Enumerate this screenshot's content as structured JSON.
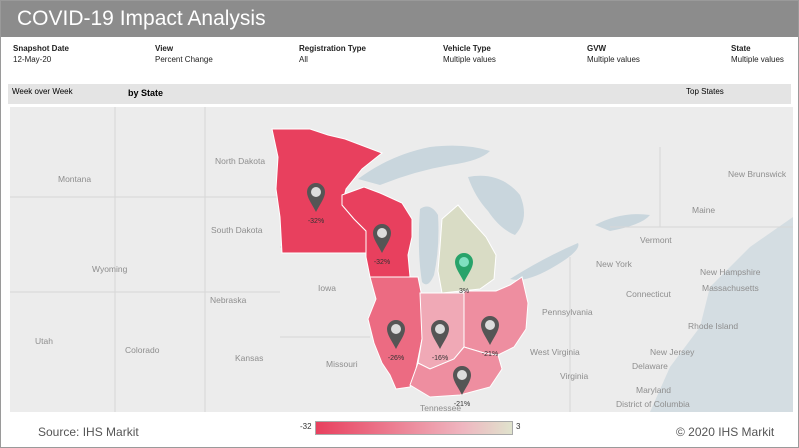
{
  "header": {
    "title": "COVID-19 Impact Analysis"
  },
  "filters": [
    {
      "label": "Snapshot Date",
      "value": "12-May-20"
    },
    {
      "label": "View",
      "value": "Percent Change"
    },
    {
      "label": "Registration Type",
      "value": "All"
    },
    {
      "label": "Vehicle Type",
      "value": "Multiple values"
    },
    {
      "label": "GVW",
      "value": "Multiple values"
    },
    {
      "label": "State",
      "value": "Multiple values"
    }
  ],
  "subheader": {
    "period": "Week over Week",
    "group": "by State",
    "right": "Top States"
  },
  "map": {
    "place_labels": [
      "Montana",
      "North Dakota",
      "South Dakota",
      "Wyoming",
      "Nebraska",
      "Iowa",
      "Colorado",
      "Kansas",
      "Missouri",
      "Utah",
      "Pennsylvania",
      "New York",
      "Vermont",
      "Maine",
      "New Brunswick",
      "New Hampshire",
      "Massachusetts",
      "Connecticut",
      "Rhode Island",
      "New Jersey",
      "Delaware",
      "Maryland",
      "District of Columbia",
      "West Virginia",
      "Virginia",
      "Tennessee"
    ],
    "states": [
      {
        "name": "Minnesota",
        "value": "-32%",
        "color": "#e8405e"
      },
      {
        "name": "Wisconsin",
        "value": "-32%",
        "color": "#e8405e"
      },
      {
        "name": "Michigan",
        "value": "3%",
        "color": "#d9dcc5"
      },
      {
        "name": "Illinois",
        "value": "-26%",
        "color": "#ec6b82"
      },
      {
        "name": "Indiana",
        "value": "-16%",
        "color": "#f0a9b6"
      },
      {
        "name": "Ohio",
        "value": "-21%",
        "color": "#ee8ea0"
      },
      {
        "name": "Kentucky",
        "value": "-21%",
        "color": "#ee8ea0"
      }
    ]
  },
  "legend": {
    "min": "-32",
    "max": "3",
    "colors": [
      "#e8405e",
      "#e0e3cd"
    ]
  },
  "footer": {
    "source": "Source: IHS Markit",
    "copyright": "© 2020 IHS Markit"
  }
}
